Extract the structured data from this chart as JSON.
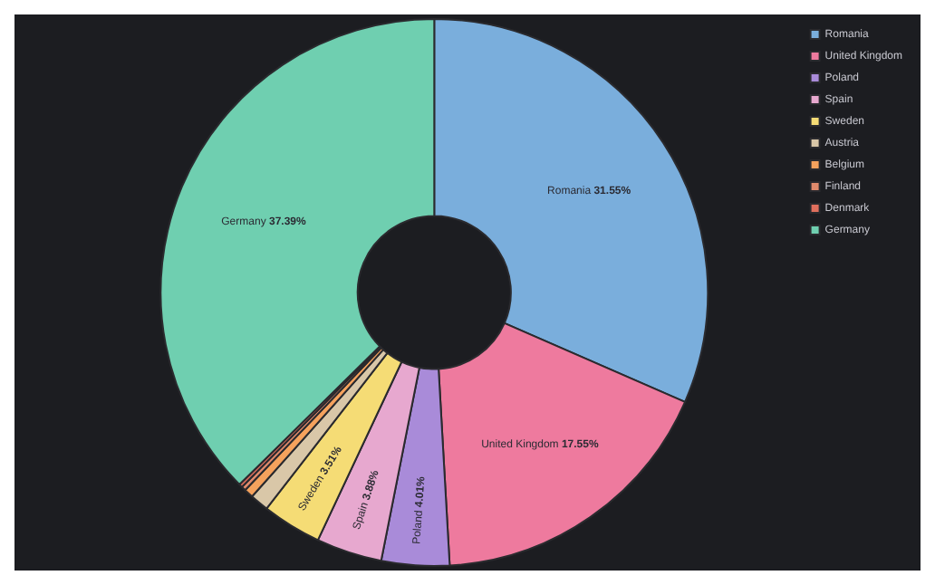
{
  "chart_data": {
    "type": "donut",
    "categories": [
      "Romania",
      "United Kingdom",
      "Poland",
      "Spain",
      "Sweden",
      "Austria",
      "Belgium",
      "Finland",
      "Denmark",
      "Germany"
    ],
    "values": [
      31.55,
      17.55,
      4.01,
      3.88,
      3.51,
      1.1,
      0.55,
      0.26,
      0.2,
      37.39
    ],
    "colors": [
      "#7aaedc",
      "#ee7a9e",
      "#a98bd9",
      "#e7a8cf",
      "#f5dc75",
      "#d9c7a8",
      "#f5a25d",
      "#e08a6c",
      "#e06f5d",
      "#6fcfb0"
    ],
    "value_labels": [
      "31.55%",
      "17.55%",
      "4.01%",
      "3.88%",
      "3.51%",
      null,
      null,
      null,
      null,
      "37.39%"
    ],
    "legend": "top right"
  }
}
